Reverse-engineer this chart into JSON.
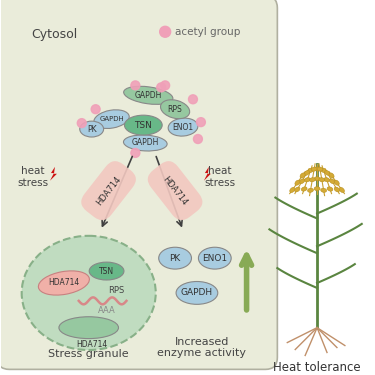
{
  "bg_color": "#ffffff",
  "cytosol_box_color": "#eaecda",
  "cytosol_label": "Cytosol",
  "acetyl_label": "acetyl group",
  "acetyl_color": "#f0a0b8",
  "heat_stress_label": "heat\nstress",
  "hda714_label": "HDA714",
  "hda714_color": "#f2c8c0",
  "stress_granule_label": "Stress granule",
  "enzyme_label": "Increased\nenzyme activity",
  "heat_tolerance_label": "Heat tolerance",
  "gapdh_top_color": "#96c8a0",
  "rps_color": "#96c8a0",
  "tsn_color": "#68b888",
  "eno1_color": "#a8cce0",
  "pk_color": "#a8cce0",
  "gapdh_blue_color": "#a8cce0",
  "arrow_color": "#404040",
  "sg_fill": "#c0dcc0",
  "sg_border": "#88b088",
  "red_lightning": "#cc1010",
  "green_arrow_color": "#88aa55",
  "wavy_color": "#d88888",
  "text_color": "#444444",
  "box_border": "#b0b0a0"
}
